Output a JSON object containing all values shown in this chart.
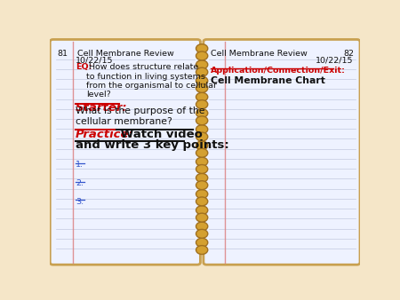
{
  "bg_color": "#f5e6c8",
  "page_color": "#eef2ff",
  "line_color": "#b0b8d0",
  "spiral_color": "#d4a030",
  "border_color": "#c8a050",
  "page_num_left": "81",
  "page_num_right": "82",
  "header_left": "Cell Membrane Review",
  "header_right": "Cell Membrane Review",
  "date_left": "10/22/15",
  "date_right": "10/22/15",
  "eq_label": "EQ:",
  "eq_text": " How does structure relate\nto function in living systems\nfrom the organismal to cellular\nlevel?",
  "starter_label": "Starter:",
  "starter_text": "What is the purpose of the\ncellular membrane?",
  "practice_label": "Practice:",
  "practice_text_a": " Watch video",
  "practice_text_b": "and write 3 key points:",
  "items": [
    "1.",
    "2.",
    "3."
  ],
  "right_label": "Application/Connection/Exit:",
  "right_subtext": "Cell Membrane Chart",
  "red_color": "#cc0000",
  "black_color": "#111111",
  "blue_color": "#3355cc",
  "margin_red": "#dd8888",
  "spiral_edge": "#a07020"
}
